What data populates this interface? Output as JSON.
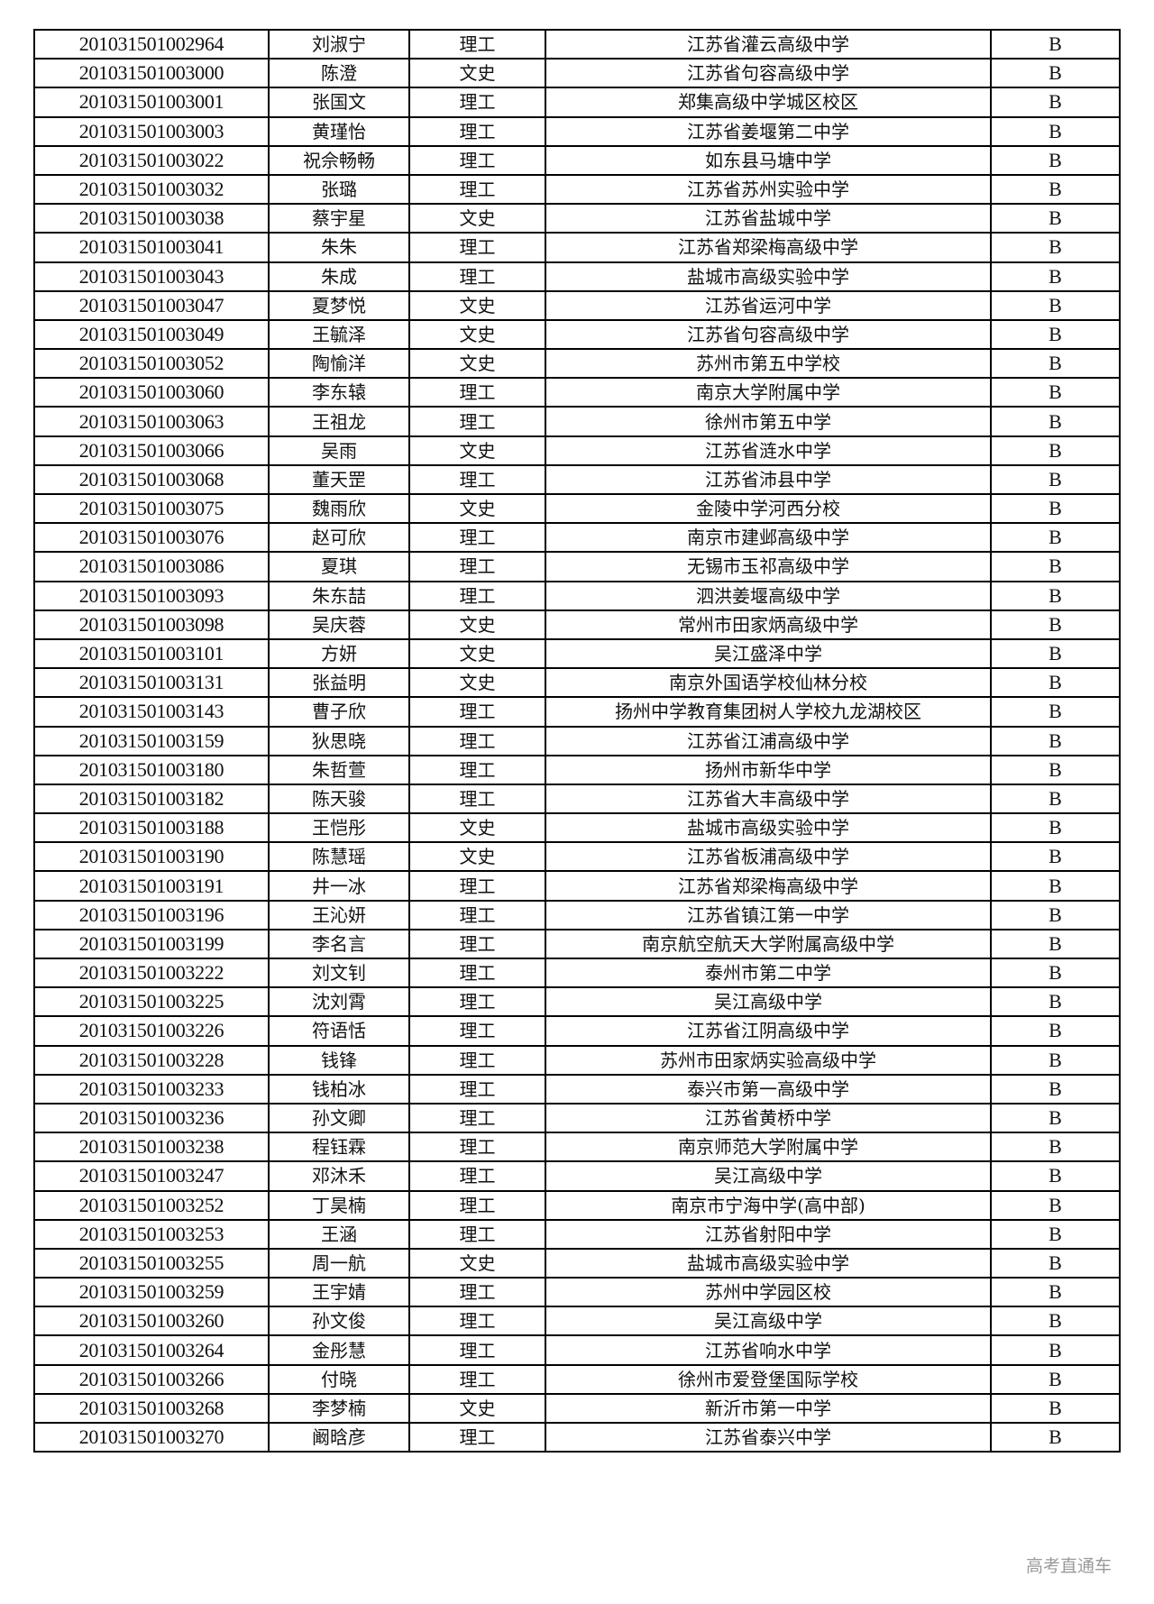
{
  "rows": [
    [
      "201031501002964",
      "刘淑宁",
      "理工",
      "江苏省灌云高级中学",
      "B"
    ],
    [
      "201031501003000",
      "陈澄",
      "文史",
      "江苏省句容高级中学",
      "B"
    ],
    [
      "201031501003001",
      "张国文",
      "理工",
      "郑集高级中学城区校区",
      "B"
    ],
    [
      "201031501003003",
      "黄瑾怡",
      "理工",
      "江苏省姜堰第二中学",
      "B"
    ],
    [
      "201031501003022",
      "祝佘畅畅",
      "理工",
      "如东县马塘中学",
      "B"
    ],
    [
      "201031501003032",
      "张璐",
      "理工",
      "江苏省苏州实验中学",
      "B"
    ],
    [
      "201031501003038",
      "蔡宇星",
      "文史",
      "江苏省盐城中学",
      "B"
    ],
    [
      "201031501003041",
      "朱朱",
      "理工",
      "江苏省郑梁梅高级中学",
      "B"
    ],
    [
      "201031501003043",
      "朱成",
      "理工",
      "盐城市高级实验中学",
      "B"
    ],
    [
      "201031501003047",
      "夏梦悦",
      "文史",
      "江苏省运河中学",
      "B"
    ],
    [
      "201031501003049",
      "王毓泽",
      "文史",
      "江苏省句容高级中学",
      "B"
    ],
    [
      "201031501003052",
      "陶愉洋",
      "文史",
      "苏州市第五中学校",
      "B"
    ],
    [
      "201031501003060",
      "李东辕",
      "理工",
      "南京大学附属中学",
      "B"
    ],
    [
      "201031501003063",
      "王祖龙",
      "理工",
      "徐州市第五中学",
      "B"
    ],
    [
      "201031501003066",
      "吴雨",
      "文史",
      "江苏省涟水中学",
      "B"
    ],
    [
      "201031501003068",
      "董天罡",
      "理工",
      "江苏省沛县中学",
      "B"
    ],
    [
      "201031501003075",
      "魏雨欣",
      "文史",
      "金陵中学河西分校",
      "B"
    ],
    [
      "201031501003076",
      "赵可欣",
      "理工",
      "南京市建邺高级中学",
      "B"
    ],
    [
      "201031501003086",
      "夏琪",
      "理工",
      "无锡市玉祁高级中学",
      "B"
    ],
    [
      "201031501003093",
      "朱东喆",
      "理工",
      "泗洪姜堰高级中学",
      "B"
    ],
    [
      "201031501003098",
      "吴庆蓉",
      "文史",
      "常州市田家炳高级中学",
      "B"
    ],
    [
      "201031501003101",
      "方妍",
      "文史",
      "吴江盛泽中学",
      "B"
    ],
    [
      "201031501003131",
      "张益明",
      "文史",
      "南京外国语学校仙林分校",
      "B"
    ],
    [
      "201031501003143",
      "曹子欣",
      "理工",
      "扬州中学教育集团树人学校九龙湖校区",
      "B"
    ],
    [
      "201031501003159",
      "狄思晓",
      "理工",
      "江苏省江浦高级中学",
      "B"
    ],
    [
      "201031501003180",
      "朱哲萱",
      "理工",
      "扬州市新华中学",
      "B"
    ],
    [
      "201031501003182",
      "陈天骏",
      "理工",
      "江苏省大丰高级中学",
      "B"
    ],
    [
      "201031501003188",
      "王恺彤",
      "文史",
      "盐城市高级实验中学",
      "B"
    ],
    [
      "201031501003190",
      "陈慧瑶",
      "文史",
      "江苏省板浦高级中学",
      "B"
    ],
    [
      "201031501003191",
      "井一冰",
      "理工",
      "江苏省郑梁梅高级中学",
      "B"
    ],
    [
      "201031501003196",
      "王沁妍",
      "理工",
      "江苏省镇江第一中学",
      "B"
    ],
    [
      "201031501003199",
      "李名言",
      "理工",
      "南京航空航天大学附属高级中学",
      "B"
    ],
    [
      "201031501003222",
      "刘文钊",
      "理工",
      "泰州市第二中学",
      "B"
    ],
    [
      "201031501003225",
      "沈刘霄",
      "理工",
      "吴江高级中学",
      "B"
    ],
    [
      "201031501003226",
      "符语恬",
      "理工",
      "江苏省江阴高级中学",
      "B"
    ],
    [
      "201031501003228",
      "钱锋",
      "理工",
      "苏州市田家炳实验高级中学",
      "B"
    ],
    [
      "201031501003233",
      "钱柏冰",
      "理工",
      "泰兴市第一高级中学",
      "B"
    ],
    [
      "201031501003236",
      "孙文卿",
      "理工",
      "江苏省黄桥中学",
      "B"
    ],
    [
      "201031501003238",
      "程钰霖",
      "理工",
      "南京师范大学附属中学",
      "B"
    ],
    [
      "201031501003247",
      "邓沐禾",
      "理工",
      "吴江高级中学",
      "B"
    ],
    [
      "201031501003252",
      "丁昊楠",
      "理工",
      "南京市宁海中学(高中部)",
      "B"
    ],
    [
      "201031501003253",
      "王涵",
      "理工",
      "江苏省射阳中学",
      "B"
    ],
    [
      "201031501003255",
      "周一航",
      "文史",
      "盐城市高级实验中学",
      "B"
    ],
    [
      "201031501003259",
      "王宇婧",
      "理工",
      "苏州中学园区校",
      "B"
    ],
    [
      "201031501003260",
      "孙文俊",
      "理工",
      "吴江高级中学",
      "B"
    ],
    [
      "201031501003264",
      "金彤慧",
      "理工",
      "江苏省响水中学",
      "B"
    ],
    [
      "201031501003266",
      "付晓",
      "理工",
      "徐州市爱登堡国际学校",
      "B"
    ],
    [
      "201031501003268",
      "李梦楠",
      "文史",
      "新沂市第一中学",
      "B"
    ],
    [
      "201031501003270",
      "阚晗彦",
      "理工",
      "江苏省泰兴中学",
      "B"
    ]
  ],
  "watermark": "高考直通车"
}
